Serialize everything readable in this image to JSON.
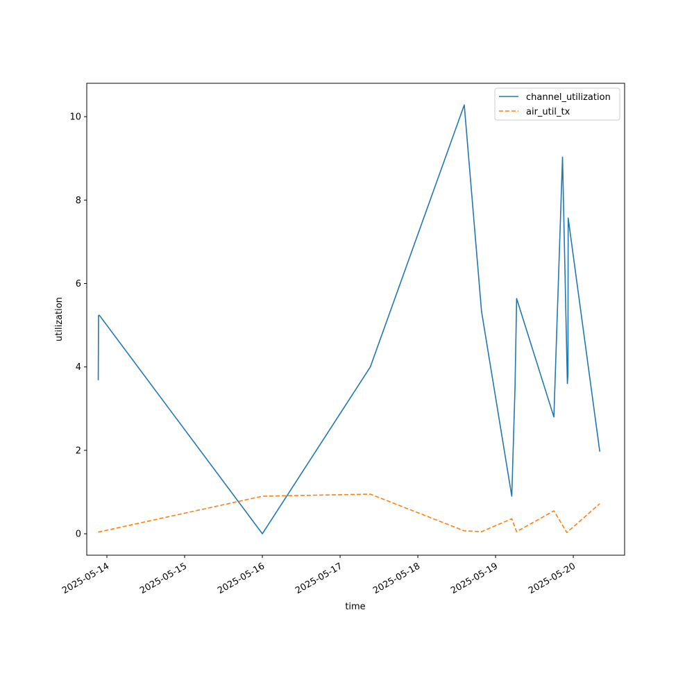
{
  "chart_data": {
    "type": "line",
    "title": "",
    "xlabel": "time",
    "ylabel": "utilization",
    "x_type": "datetime",
    "xlim": [
      "2025-05-13T17:47",
      "2025-05-20T15:50"
    ],
    "ylim": [
      -0.514,
      10.8
    ],
    "xticks": [
      "2025-05-14",
      "2025-05-15",
      "2025-05-16",
      "2025-05-17",
      "2025-05-18",
      "2025-05-19",
      "2025-05-20"
    ],
    "yticks": [
      0,
      2,
      4,
      6,
      8,
      10
    ],
    "grid": false,
    "legend": "top-right",
    "series": [
      {
        "name": "channel_utilization",
        "color": "#1f77b4",
        "style": "solid",
        "points": [
          [
            "2025-05-13T21:20",
            3.68
          ],
          [
            "2025-05-13T21:25",
            5.23
          ],
          [
            "2025-05-13T21:40",
            5.24
          ],
          [
            "2025-05-16T00:00",
            0.0
          ],
          [
            "2025-05-17T09:20",
            4.0
          ],
          [
            "2025-05-18T14:20",
            10.28
          ],
          [
            "2025-05-18T19:40",
            5.33
          ],
          [
            "2025-05-19T05:00",
            0.9
          ],
          [
            "2025-05-19T06:00",
            3.5
          ],
          [
            "2025-05-19T06:30",
            5.64
          ],
          [
            "2025-05-19T18:00",
            2.8
          ],
          [
            "2025-05-19T20:40",
            9.03
          ],
          [
            "2025-05-19T22:10",
            3.6
          ],
          [
            "2025-05-19T22:20",
            3.8
          ],
          [
            "2025-05-19T22:25",
            7.57
          ],
          [
            "2025-05-20T08:10",
            1.97
          ]
        ]
      },
      {
        "name": "air_util_tx",
        "color": "#ff7f0e",
        "style": "dashed",
        "points": [
          [
            "2025-05-13T21:20",
            0.04
          ],
          [
            "2025-05-16T00:00",
            0.9
          ],
          [
            "2025-05-17T09:20",
            0.95
          ],
          [
            "2025-05-18T14:20",
            0.07
          ],
          [
            "2025-05-18T19:40",
            0.05
          ],
          [
            "2025-05-19T05:00",
            0.36
          ],
          [
            "2025-05-19T06:30",
            0.05
          ],
          [
            "2025-05-19T18:00",
            0.55
          ],
          [
            "2025-05-19T22:00",
            0.03
          ],
          [
            "2025-05-20T08:10",
            0.72
          ]
        ]
      }
    ]
  }
}
